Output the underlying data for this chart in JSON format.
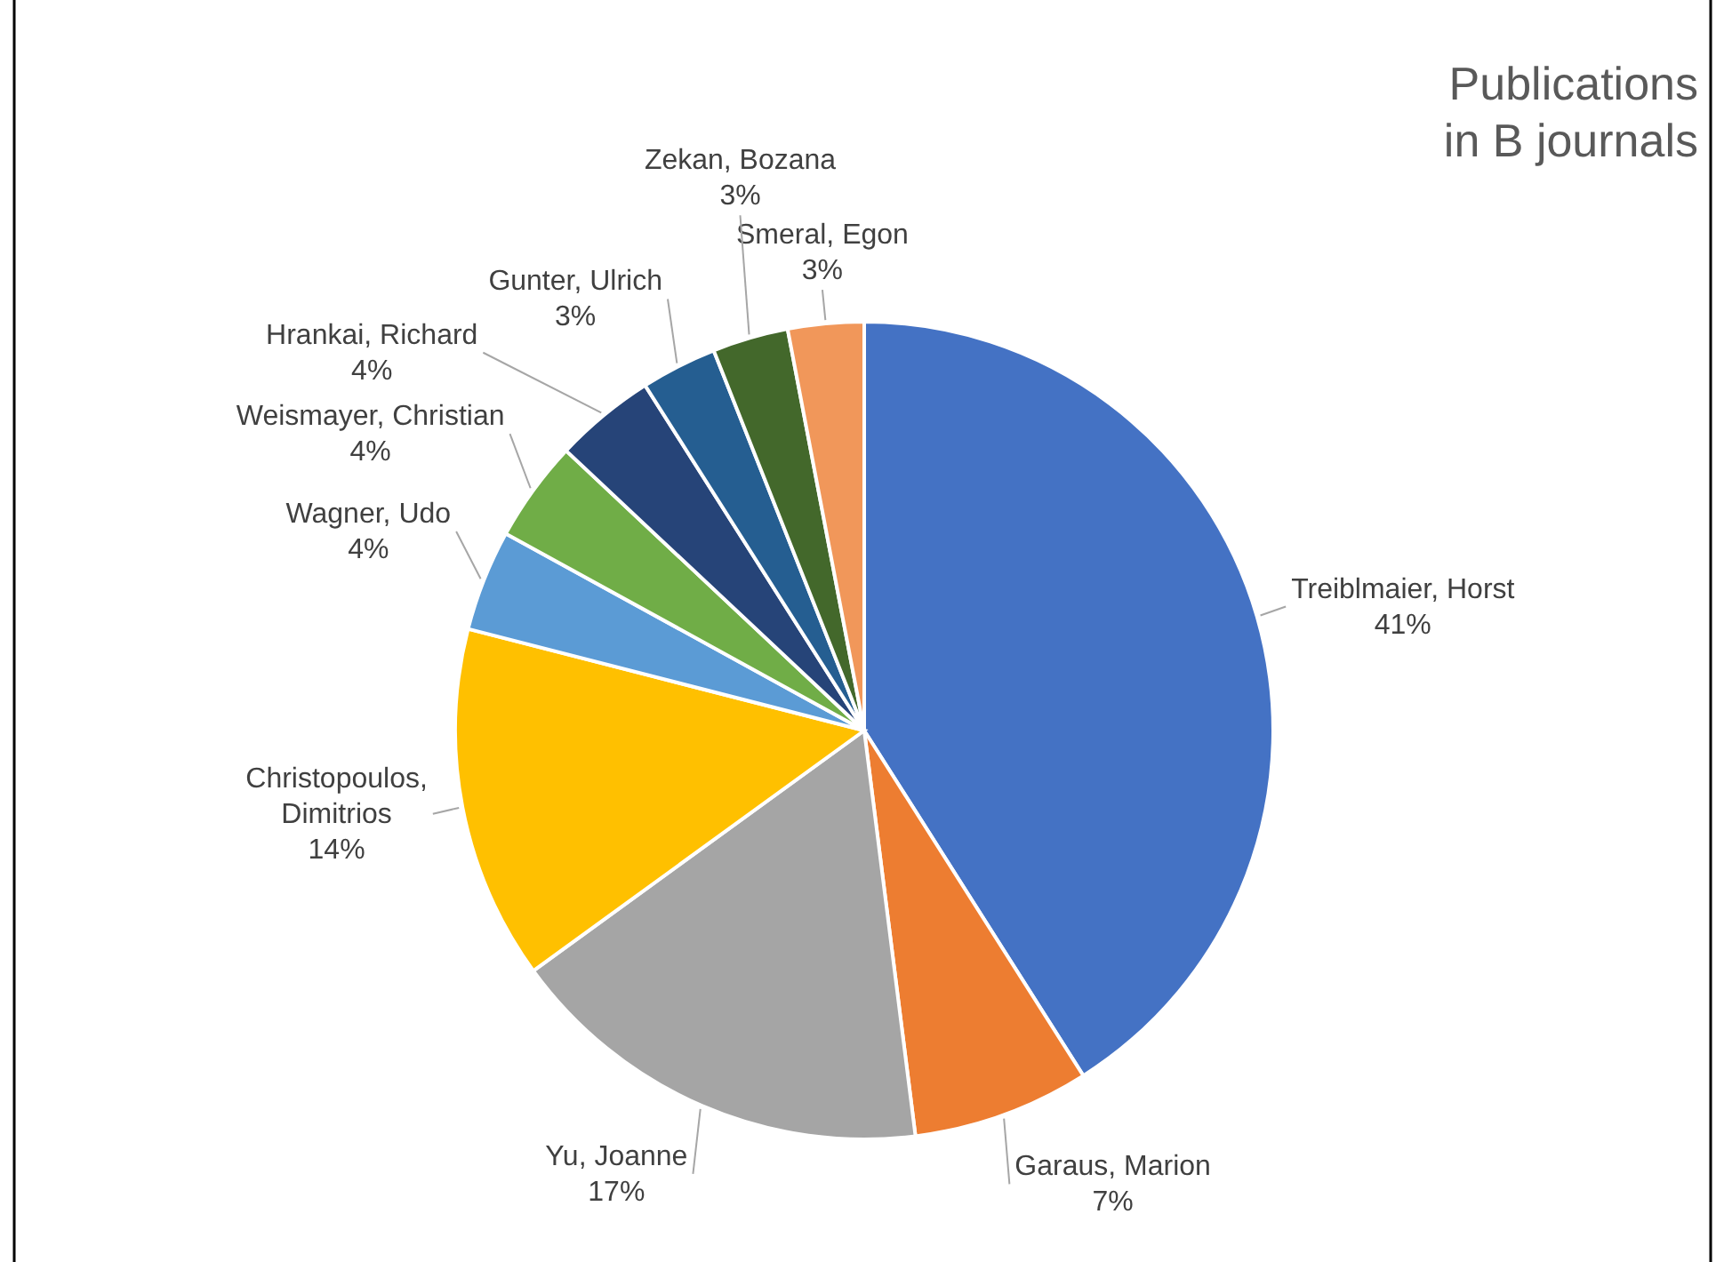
{
  "chart_data": {
    "type": "pie",
    "title": "Publications in B journals",
    "categories": [
      "Treiblmaier, Horst",
      "Garaus, Marion",
      "Yu, Joanne",
      "Christopoulos, Dimitrios",
      "Wagner, Udo",
      "Weismayer, Christian",
      "Hrankai, Richard",
      "Gunter, Ulrich",
      "Zekan, Bozana",
      "Smeral, Egon"
    ],
    "values": [
      41,
      7,
      17,
      14,
      4,
      4,
      4,
      3,
      3,
      3
    ],
    "value_labels": [
      "41%",
      "7%",
      "17%",
      "14%",
      "4%",
      "4%",
      "4%",
      "3%",
      "3%",
      "3%"
    ],
    "colors": [
      "#4472c4",
      "#ed7d31",
      "#a5a5a5",
      "#ffc000",
      "#5b9bd5",
      "#70ad47",
      "#264478",
      "#255e91",
      "#43682b",
      "#f1975a"
    ]
  }
}
